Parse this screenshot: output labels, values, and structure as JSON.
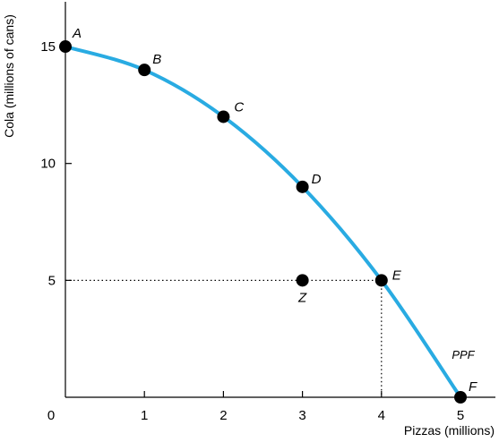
{
  "chart_data": {
    "type": "line",
    "xlabel": "Pizzas (millions)",
    "ylabel": "Cola (millions of cans)",
    "xlim": [
      0,
      5
    ],
    "ylim": [
      0,
      17
    ],
    "x_ticks": [
      "1",
      "2",
      "3",
      "4",
      "5"
    ],
    "y_ticks": [
      "5",
      "10",
      "15"
    ],
    "origin_label": "0",
    "curve_label": "PPF",
    "curve_color": "#29abe2",
    "series": [
      {
        "name": "PPF",
        "points": [
          {
            "label": "A",
            "x": 0,
            "y": 15
          },
          {
            "label": "B",
            "x": 1,
            "y": 14
          },
          {
            "label": "C",
            "x": 2,
            "y": 12
          },
          {
            "label": "D",
            "x": 3,
            "y": 9
          },
          {
            "label": "E",
            "x": 4,
            "y": 5
          },
          {
            "label": "F",
            "x": 5,
            "y": 0
          }
        ]
      }
    ],
    "extra_points": [
      {
        "label": "Z",
        "x": 3,
        "y": 5
      }
    ],
    "guides": [
      {
        "from": {
          "x": 0,
          "y": 5
        },
        "to": {
          "x": 4,
          "y": 5
        }
      },
      {
        "from": {
          "x": 4,
          "y": 5
        },
        "to": {
          "x": 4,
          "y": 0
        }
      }
    ]
  }
}
